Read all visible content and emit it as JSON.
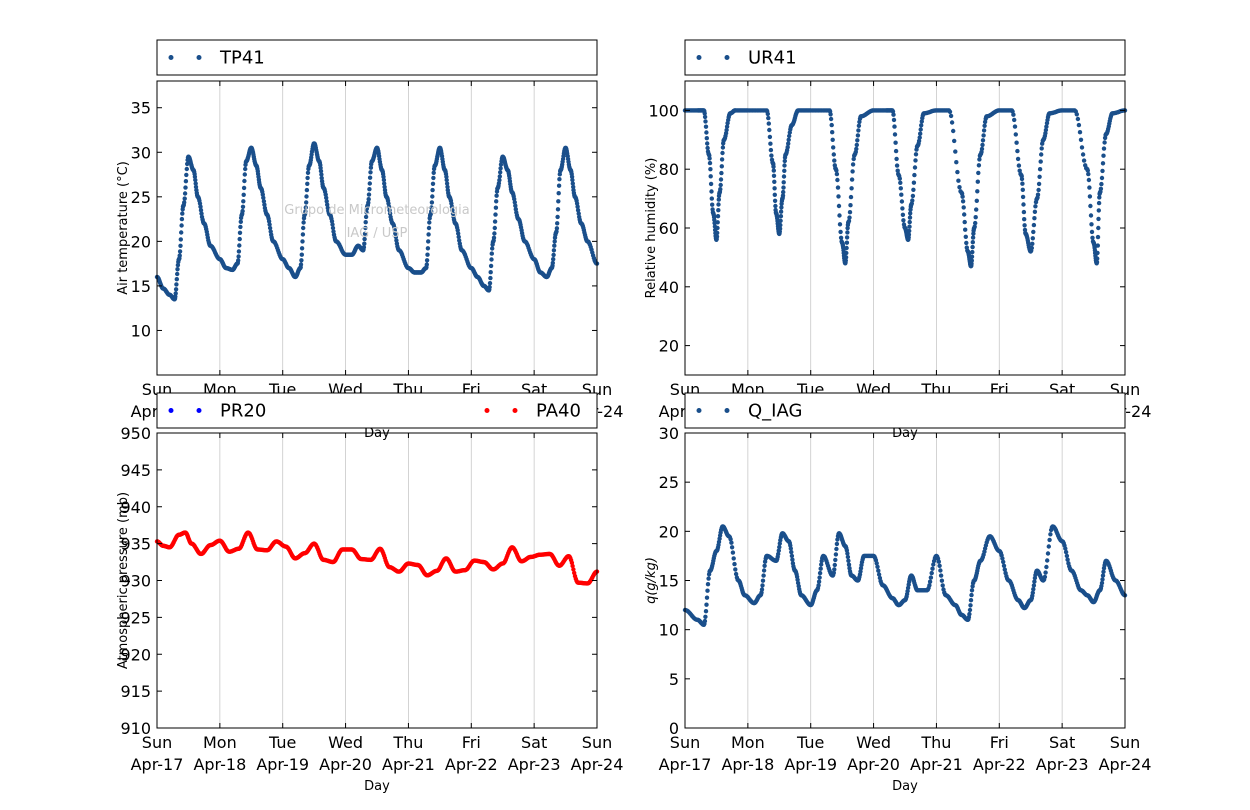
{
  "watermark": {
    "line1": "Grupo de Micrometeorologia",
    "line2": "IAG / USP"
  },
  "days": [
    {
      "weekday": "Sun",
      "date": "Apr-17"
    },
    {
      "weekday": "Mon",
      "date": "Apr-18"
    },
    {
      "weekday": "Tue",
      "date": "Apr-19"
    },
    {
      "weekday": "Wed",
      "date": "Apr-20"
    },
    {
      "weekday": "Thu",
      "date": "Apr-21"
    },
    {
      "weekday": "Fri",
      "date": "Apr-22"
    },
    {
      "weekday": "Sat",
      "date": "Apr-23"
    },
    {
      "weekday": "Sun",
      "date": "Apr-24"
    }
  ],
  "chart_data": [
    {
      "id": "temperature",
      "type": "scatter",
      "xlabel": "Day",
      "ylabel": "Air temperature (°C)",
      "ylim": [
        5,
        38
      ],
      "yticks": [
        10,
        15,
        20,
        25,
        30,
        35
      ],
      "xlim": [
        "Apr-17 00:00",
        "Apr-24 00:00"
      ],
      "grid": "vertical",
      "legend": "top",
      "series": [
        {
          "name": "TP41",
          "color": "#1a4f8b",
          "x_days": [
            0,
            0.1,
            0.2,
            0.28,
            0.35,
            0.42,
            0.5,
            0.58,
            0.65,
            0.75,
            0.85,
            1.0,
            1.1,
            1.2,
            1.28,
            1.35,
            1.42,
            1.5,
            1.58,
            1.65,
            1.75,
            1.85,
            2.0,
            2.1,
            2.2,
            2.28,
            2.35,
            2.42,
            2.5,
            2.58,
            2.65,
            2.75,
            2.85,
            3.0,
            3.1,
            3.2,
            3.28,
            3.35,
            3.42,
            3.5,
            3.58,
            3.65,
            3.75,
            3.85,
            4.0,
            4.1,
            4.2,
            4.28,
            4.35,
            4.42,
            4.5,
            4.58,
            4.65,
            4.75,
            4.85,
            5.0,
            5.1,
            5.2,
            5.28,
            5.35,
            5.42,
            5.5,
            5.58,
            5.65,
            5.75,
            5.85,
            6.0,
            6.1,
            6.2,
            6.28,
            6.35,
            6.42,
            6.5,
            6.58,
            6.65,
            6.75,
            6.85,
            7.0
          ],
          "y": [
            16,
            14.7,
            14,
            13.5,
            18,
            24,
            29.5,
            28,
            25,
            22,
            19.5,
            18,
            17,
            16.8,
            17.5,
            23,
            29,
            30.5,
            28.5,
            26,
            23,
            20,
            18,
            17,
            16,
            17,
            23,
            28.5,
            31,
            29,
            26,
            23,
            20,
            18.5,
            18.5,
            19.5,
            19,
            24,
            29,
            30.5,
            28,
            25,
            22,
            19,
            17,
            16.5,
            16.5,
            17,
            23,
            28.5,
            30.5,
            28,
            25,
            22,
            19,
            17,
            16,
            15,
            14.5,
            20,
            26,
            29.5,
            28,
            25.5,
            22.5,
            20,
            18,
            16.5,
            16,
            17,
            21,
            28,
            30.5,
            28,
            25,
            22,
            20,
            17.5
          ]
        }
      ]
    },
    {
      "id": "humidity",
      "type": "scatter",
      "xlabel": "Day",
      "ylabel": "Relative humidity (%)",
      "ylim": [
        10,
        110
      ],
      "yticks": [
        20,
        40,
        60,
        80,
        100
      ],
      "xlim": [
        "Apr-17 00:00",
        "Apr-24 00:00"
      ],
      "grid": "vertical",
      "legend": "top",
      "series": [
        {
          "name": "UR41",
          "color": "#1a4f8b",
          "x_days": [
            0,
            0.2,
            0.3,
            0.38,
            0.45,
            0.5,
            0.55,
            0.62,
            0.72,
            0.8,
            1.0,
            1.3,
            1.4,
            1.45,
            1.5,
            1.55,
            1.6,
            1.7,
            1.8,
            2.0,
            2.3,
            2.4,
            2.5,
            2.55,
            2.6,
            2.7,
            2.8,
            3.0,
            3.2,
            3.3,
            3.4,
            3.5,
            3.55,
            3.6,
            3.7,
            3.8,
            4.0,
            4.2,
            4.4,
            4.5,
            4.55,
            4.6,
            4.7,
            4.8,
            5.0,
            5.2,
            5.35,
            5.42,
            5.5,
            5.6,
            5.7,
            5.8,
            6.0,
            6.2,
            6.4,
            6.5,
            6.55,
            6.6,
            6.7,
            6.8,
            7.0
          ],
          "y": [
            100,
            100,
            100,
            85,
            65,
            56,
            72,
            90,
            99,
            100,
            100,
            100,
            82,
            65,
            58,
            70,
            85,
            95,
            100,
            100,
            100,
            80,
            55,
            48,
            62,
            85,
            98,
            100,
            100,
            100,
            78,
            60,
            56,
            68,
            88,
            99,
            100,
            100,
            72,
            52,
            47,
            60,
            85,
            98,
            100,
            100,
            78,
            58,
            52,
            70,
            90,
            99,
            100,
            100,
            80,
            55,
            48,
            72,
            92,
            99,
            100
          ]
        }
      ]
    },
    {
      "id": "pressure",
      "type": "scatter",
      "xlabel": "Day",
      "ylabel": "Atmospheric pressure (mb)",
      "ylim": [
        910,
        950
      ],
      "yticks": [
        910,
        915,
        920,
        925,
        930,
        935,
        940,
        945,
        950
      ],
      "xlim": [
        "Apr-17 00:00",
        "Apr-24 00:00"
      ],
      "grid": "vertical",
      "legend": "top",
      "series": [
        {
          "name": "PR20",
          "color": "#0000ff",
          "x_days": [],
          "y": []
        },
        {
          "name": "PA40",
          "color": "#ff0000",
          "x_days": [
            0,
            0.1,
            0.2,
            0.35,
            0.45,
            0.55,
            0.7,
            0.85,
            1.0,
            1.15,
            1.3,
            1.45,
            1.6,
            1.75,
            1.9,
            2.05,
            2.2,
            2.35,
            2.5,
            2.65,
            2.8,
            2.95,
            3.1,
            3.25,
            3.4,
            3.55,
            3.7,
            3.85,
            4.0,
            4.15,
            4.3,
            4.45,
            4.6,
            4.75,
            4.9,
            5.05,
            5.2,
            5.35,
            5.5,
            5.65,
            5.8,
            5.95,
            6.1,
            6.25,
            6.4,
            6.55,
            6.7,
            6.85,
            7.0
          ],
          "y": [
            935.3,
            934.7,
            934.5,
            936.2,
            936.5,
            935,
            933.6,
            934.8,
            935.4,
            933.9,
            934.3,
            936.5,
            934.2,
            934.1,
            935.3,
            934.6,
            933,
            933.7,
            935.0,
            932.8,
            932.5,
            934.2,
            934.2,
            932.9,
            932.8,
            934.3,
            931.8,
            931.2,
            932.3,
            932.1,
            930.7,
            931.3,
            933.0,
            931.2,
            931.4,
            932.7,
            932.5,
            931.5,
            932.3,
            934.5,
            932.6,
            933.2,
            933.5,
            933.6,
            932.0,
            933.3,
            929.7,
            929.6,
            931.2
          ]
        }
      ]
    },
    {
      "id": "specific-humidity",
      "type": "scatter",
      "xlabel": "Day",
      "ylabel": "q(g/kg)",
      "ylim": [
        0,
        30
      ],
      "yticks": [
        0,
        5,
        10,
        15,
        20,
        25,
        30
      ],
      "xlim": [
        "Apr-17 00:00",
        "Apr-24 00:00"
      ],
      "grid": "vertical",
      "legend": "top",
      "series": [
        {
          "name": "Q_IAG",
          "color": "#1a4f8b",
          "x_days": [
            0,
            0.2,
            0.3,
            0.4,
            0.5,
            0.6,
            0.7,
            0.85,
            0.95,
            1.1,
            1.2,
            1.3,
            1.45,
            1.55,
            1.65,
            1.75,
            1.85,
            2.0,
            2.1,
            2.2,
            2.35,
            2.45,
            2.55,
            2.65,
            2.75,
            2.85,
            3.0,
            3.15,
            3.3,
            3.4,
            3.5,
            3.6,
            3.7,
            3.85,
            4.0,
            4.15,
            4.3,
            4.4,
            4.5,
            4.6,
            4.7,
            4.85,
            5.0,
            5.15,
            5.3,
            5.4,
            5.5,
            5.6,
            5.7,
            5.85,
            6.0,
            6.15,
            6.3,
            6.4,
            6.5,
            6.6,
            6.7,
            6.85,
            7.0
          ],
          "y": [
            12,
            11,
            10.5,
            16,
            18,
            20.5,
            19.5,
            15,
            13.5,
            12.7,
            13.5,
            17.5,
            17,
            19.8,
            19,
            16,
            13.5,
            12.5,
            14,
            17.5,
            15.5,
            19.8,
            18.5,
            15.5,
            15,
            17.5,
            17.5,
            14.5,
            13.2,
            12.5,
            13,
            15.5,
            14,
            14,
            17.5,
            13.5,
            12.5,
            11.5,
            11,
            15,
            17,
            19.5,
            18,
            15,
            13,
            12.2,
            13,
            16,
            15,
            20.5,
            19,
            16,
            14,
            13.5,
            12.8,
            14,
            17,
            15,
            13.5
          ]
        }
      ]
    }
  ]
}
